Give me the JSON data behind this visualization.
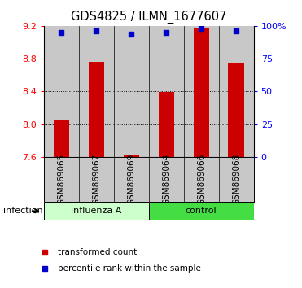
{
  "title": "GDS4825 / ILMN_1677607",
  "samples": [
    "GSM869065",
    "GSM869067",
    "GSM869069",
    "GSM869064",
    "GSM869066",
    "GSM869068"
  ],
  "red_values": [
    8.05,
    8.76,
    7.63,
    8.39,
    9.17,
    8.74
  ],
  "blue_values": [
    9.12,
    9.14,
    9.1,
    9.12,
    9.17,
    9.14
  ],
  "ylim": [
    7.6,
    9.2
  ],
  "yticks_left": [
    7.6,
    8.0,
    8.4,
    8.8,
    9.2
  ],
  "yticks_right": [
    0,
    25,
    50,
    75,
    100
  ],
  "ytick_right_labels": [
    "0",
    "25",
    "50",
    "75",
    "100%"
  ],
  "group_colors": [
    "#ccffcc",
    "#44dd44"
  ],
  "group_labels": [
    "influenza A",
    "control"
  ],
  "group_starts": [
    0,
    3
  ],
  "group_ends": [
    2,
    5
  ],
  "bar_color": "#cc0000",
  "dot_color": "#0000cc",
  "bg_color": "#c8c8c8",
  "legend_red_label": "transformed count",
  "legend_blue_label": "percentile rank within the sample",
  "bar_bottom": 7.6,
  "title_fontsize": 10.5,
  "tick_fontsize": 8,
  "sample_label_fontsize": 7.5
}
